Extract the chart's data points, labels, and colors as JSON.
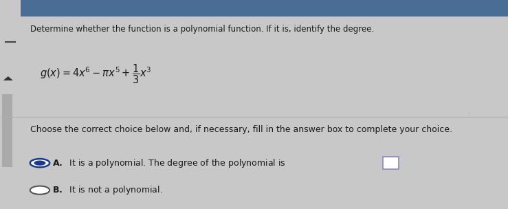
{
  "bg_color": "#c8c8c8",
  "card_color": "#e8e8e8",
  "top_bar_color": "#4a6d96",
  "text_color": "#1a1a1a",
  "instruction": "Determine whether the function is a polynomial function. If it is, identify the degree.",
  "choice_intro": "Choose the correct choice below and, if necessary, fill in the answer box to complete your choice.",
  "choice_A_text": "It is a polynomial. The degree of the polynomial is",
  "choice_B_text": "It is not a polynomial.",
  "selected": "A",
  "radio_selected_outer": "#1a3a8a",
  "radio_selected_inner": "#1a3a8a",
  "radio_unselected": "#555555",
  "separator_color": "#b0b0b0",
  "left_bar_color": "#888888",
  "font_size_instruction": 8.5,
  "font_size_function": 11,
  "font_size_choice": 9.0,
  "answer_box_color": "#8888cc"
}
